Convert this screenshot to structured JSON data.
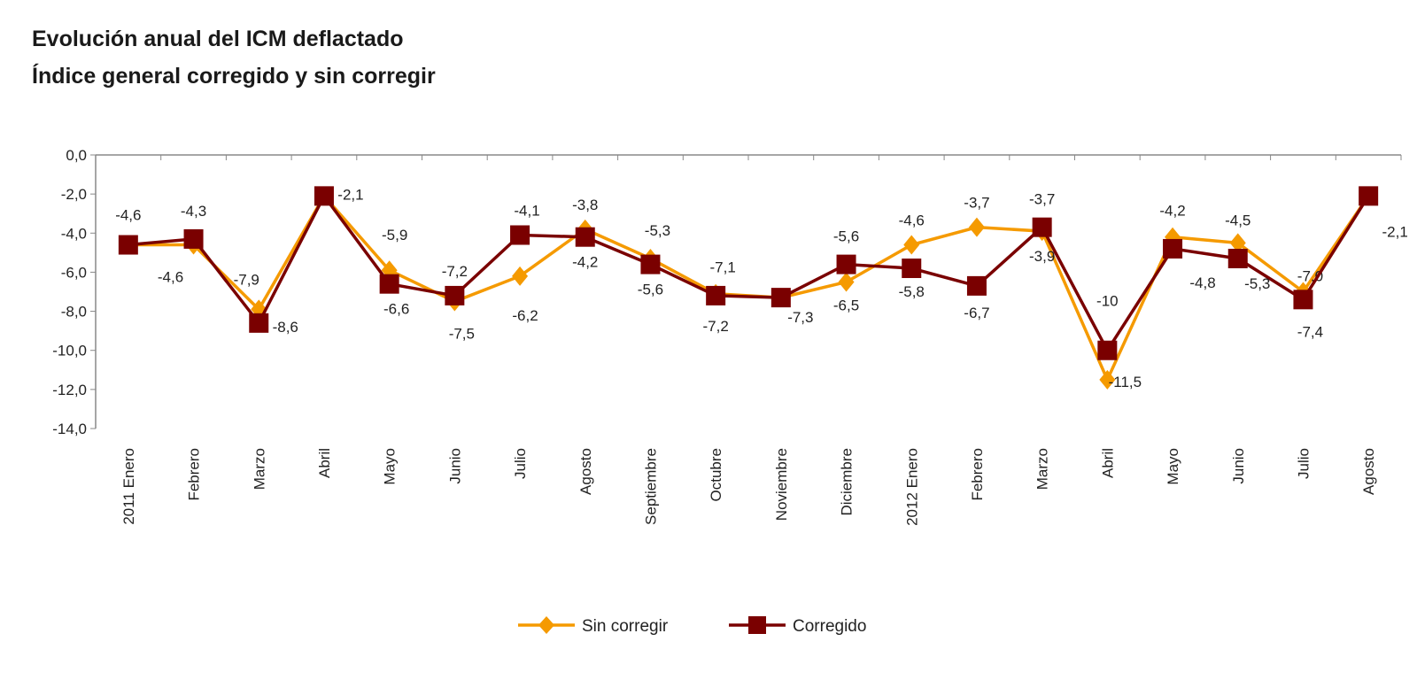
{
  "chart_data": {
    "type": "line",
    "title": "Evolución anual del ICM deflactado",
    "subtitle": "Índice general corregido y sin corregir",
    "categories": [
      "2011 Enero",
      "Febrero",
      "Marzo",
      "Abril",
      "Mayo",
      "Junio",
      "Julio",
      "Agosto",
      "Septiembre",
      "Octubre",
      "Noviembre",
      "Diciembre",
      "2012 Enero",
      "Febrero",
      "Marzo",
      "Abril",
      "Mayo",
      "Junio",
      "Julio",
      "Agosto"
    ],
    "ylim": [
      -14,
      0
    ],
    "yticks": [
      "0,0",
      "-2,0",
      "-4,0",
      "-6,0",
      "-8,0",
      "-10,0",
      "-12,0",
      "-14,0"
    ],
    "grid": false,
    "legend": "bottom",
    "series": [
      {
        "name": "Sin corregir",
        "color": "#f59a00",
        "marker": "diamond",
        "values": [
          -4.6,
          -4.6,
          -7.9,
          -2.1,
          -5.9,
          -7.5,
          -6.2,
          -3.8,
          -5.3,
          -7.1,
          -7.3,
          -6.5,
          -4.6,
          -3.7,
          -3.9,
          -11.5,
          -4.2,
          -4.5,
          -7.0,
          -2.1
        ],
        "labels": [
          null,
          "-4,6",
          "-7,9",
          null,
          "-5,9",
          "-7,5",
          "-6,2",
          "-3,8",
          "-5,3",
          "-7,1",
          null,
          "-6,5",
          "-4,6",
          "-3,7",
          "-3,9",
          "-11,5",
          "-4,2",
          "-4,5",
          "-7,0",
          null
        ]
      },
      {
        "name": "Corregido",
        "color": "#7a0000",
        "marker": "square",
        "values": [
          -4.6,
          -4.3,
          -8.6,
          -2.1,
          -6.6,
          -7.2,
          -4.1,
          -4.2,
          -5.6,
          -7.2,
          -7.3,
          -5.6,
          -5.8,
          -6.7,
          -3.7,
          -10,
          -4.8,
          -5.3,
          -7.4,
          -2.1
        ],
        "labels": [
          "-4,6",
          "-4,3",
          "-8,6",
          "-2,1",
          "-6,6",
          "-7,2",
          "-4,1",
          "-4,2",
          "-5,6",
          "-7,2",
          "-7,3",
          "-5,6",
          "-5,8",
          "-6,7",
          "-3,7",
          "-10",
          "-4,8",
          "-5,3",
          "-7,4",
          "-2,1"
        ]
      }
    ]
  }
}
